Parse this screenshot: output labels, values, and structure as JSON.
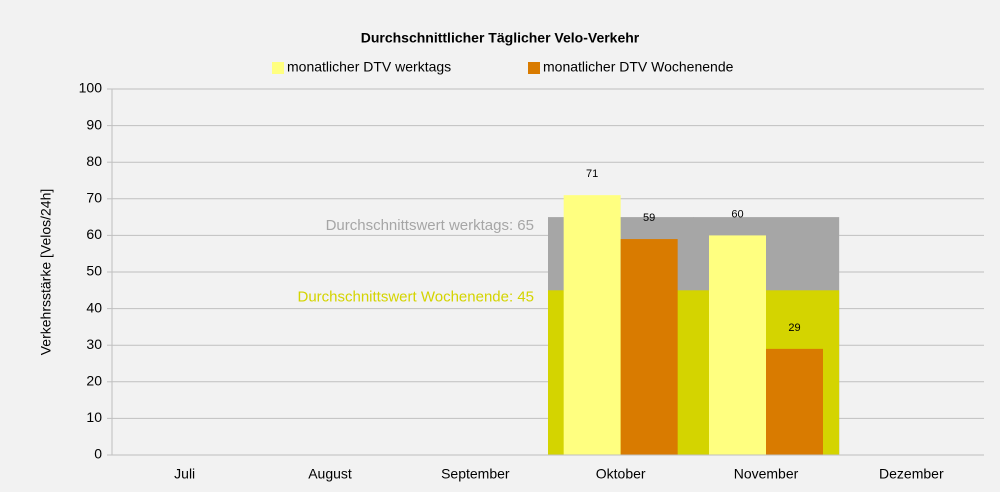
{
  "chart_data": {
    "type": "bar",
    "title": "Durchschnittlicher Täglicher Velo-Verkehr",
    "ylabel": "Verkehrsstärke [Velos/24h]",
    "categories": [
      "Juli",
      "August",
      "September",
      "Oktober",
      "November",
      "Dezember"
    ],
    "series": [
      {
        "name": "monatlicher DTV werktags",
        "color": "#ffff80",
        "values": [
          null,
          null,
          null,
          71,
          60,
          null
        ]
      },
      {
        "name": "monatlicher DTV Wochenende",
        "color": "#d97b00",
        "values": [
          null,
          null,
          null,
          59,
          29,
          null
        ]
      }
    ],
    "averages": [
      {
        "label": "Durchschnittswert werktags: 65",
        "color": "#a6a6a6",
        "text_color": "#a6a6a6",
        "values": [
          null,
          null,
          null,
          65,
          65,
          null
        ]
      },
      {
        "label": "Durchschnittswert Wochenende: 45",
        "color": "#d4d400",
        "text_color": "#d4d400",
        "values": [
          null,
          null,
          null,
          45,
          45,
          null
        ]
      }
    ],
    "ylim": [
      0,
      100
    ],
    "yticks": [
      0,
      10,
      20,
      30,
      40,
      50,
      60,
      70,
      80,
      90,
      100
    ],
    "grid": true
  }
}
